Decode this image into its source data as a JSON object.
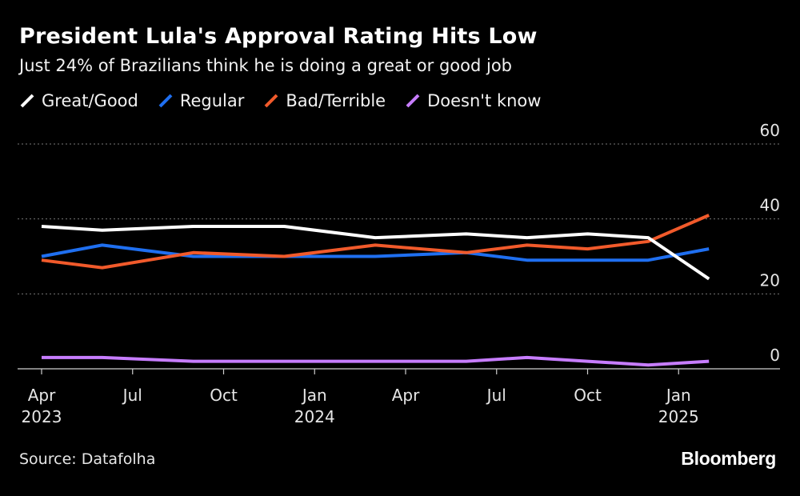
{
  "header": {
    "title": "President Lula's Approval Rating Hits Low",
    "subtitle": "Just 24% of Brazilians think he is doing a great or good job"
  },
  "footer": {
    "source": "Source: Datafolha",
    "brand": "Bloomberg"
  },
  "chart_data": {
    "type": "line",
    "title": "President Lula's Approval Rating Hits Low",
    "subtitle": "Just 24% of Brazilians think he is doing a great or good job",
    "xlabel": "",
    "ylabel": "",
    "x": [
      "2023-04",
      "2023-06",
      "2023-09",
      "2023-12",
      "2024-03",
      "2024-06",
      "2024-08",
      "2024-10",
      "2024-12",
      "2025-02"
    ],
    "x_ticks": [
      {
        "value": "2023-04",
        "label": "Apr",
        "sublabel": "2023"
      },
      {
        "value": "2023-07",
        "label": "Jul",
        "sublabel": ""
      },
      {
        "value": "2023-10",
        "label": "Oct",
        "sublabel": ""
      },
      {
        "value": "2024-01",
        "label": "Jan",
        "sublabel": "2024"
      },
      {
        "value": "2024-04",
        "label": "Apr",
        "sublabel": ""
      },
      {
        "value": "2024-07",
        "label": "Jul",
        "sublabel": ""
      },
      {
        "value": "2024-10",
        "label": "Oct",
        "sublabel": ""
      },
      {
        "value": "2025-01",
        "label": "Jan",
        "sublabel": "2025"
      }
    ],
    "xlim": [
      "2023-04",
      "2025-04"
    ],
    "ylim": [
      0,
      60
    ],
    "y_ticks": [
      0,
      20,
      40,
      60
    ],
    "grid": true,
    "legend_position": "top-left",
    "series": [
      {
        "name": "Great/Good",
        "color": "#ffffff",
        "values": [
          38,
          37,
          38,
          38,
          35,
          36,
          35,
          36,
          35,
          24
        ]
      },
      {
        "name": "Regular",
        "color": "#1f6ff0",
        "values": [
          30,
          33,
          30,
          30,
          30,
          31,
          29,
          29,
          29,
          32
        ]
      },
      {
        "name": "Bad/Terrible",
        "color": "#f15a2b",
        "values": [
          29,
          27,
          31,
          30,
          33,
          31,
          33,
          32,
          34,
          41
        ]
      },
      {
        "name": "Doesn't know",
        "color": "#c77dff",
        "values": [
          3,
          3,
          2,
          2,
          2,
          2,
          3,
          2,
          1,
          2
        ]
      }
    ]
  }
}
